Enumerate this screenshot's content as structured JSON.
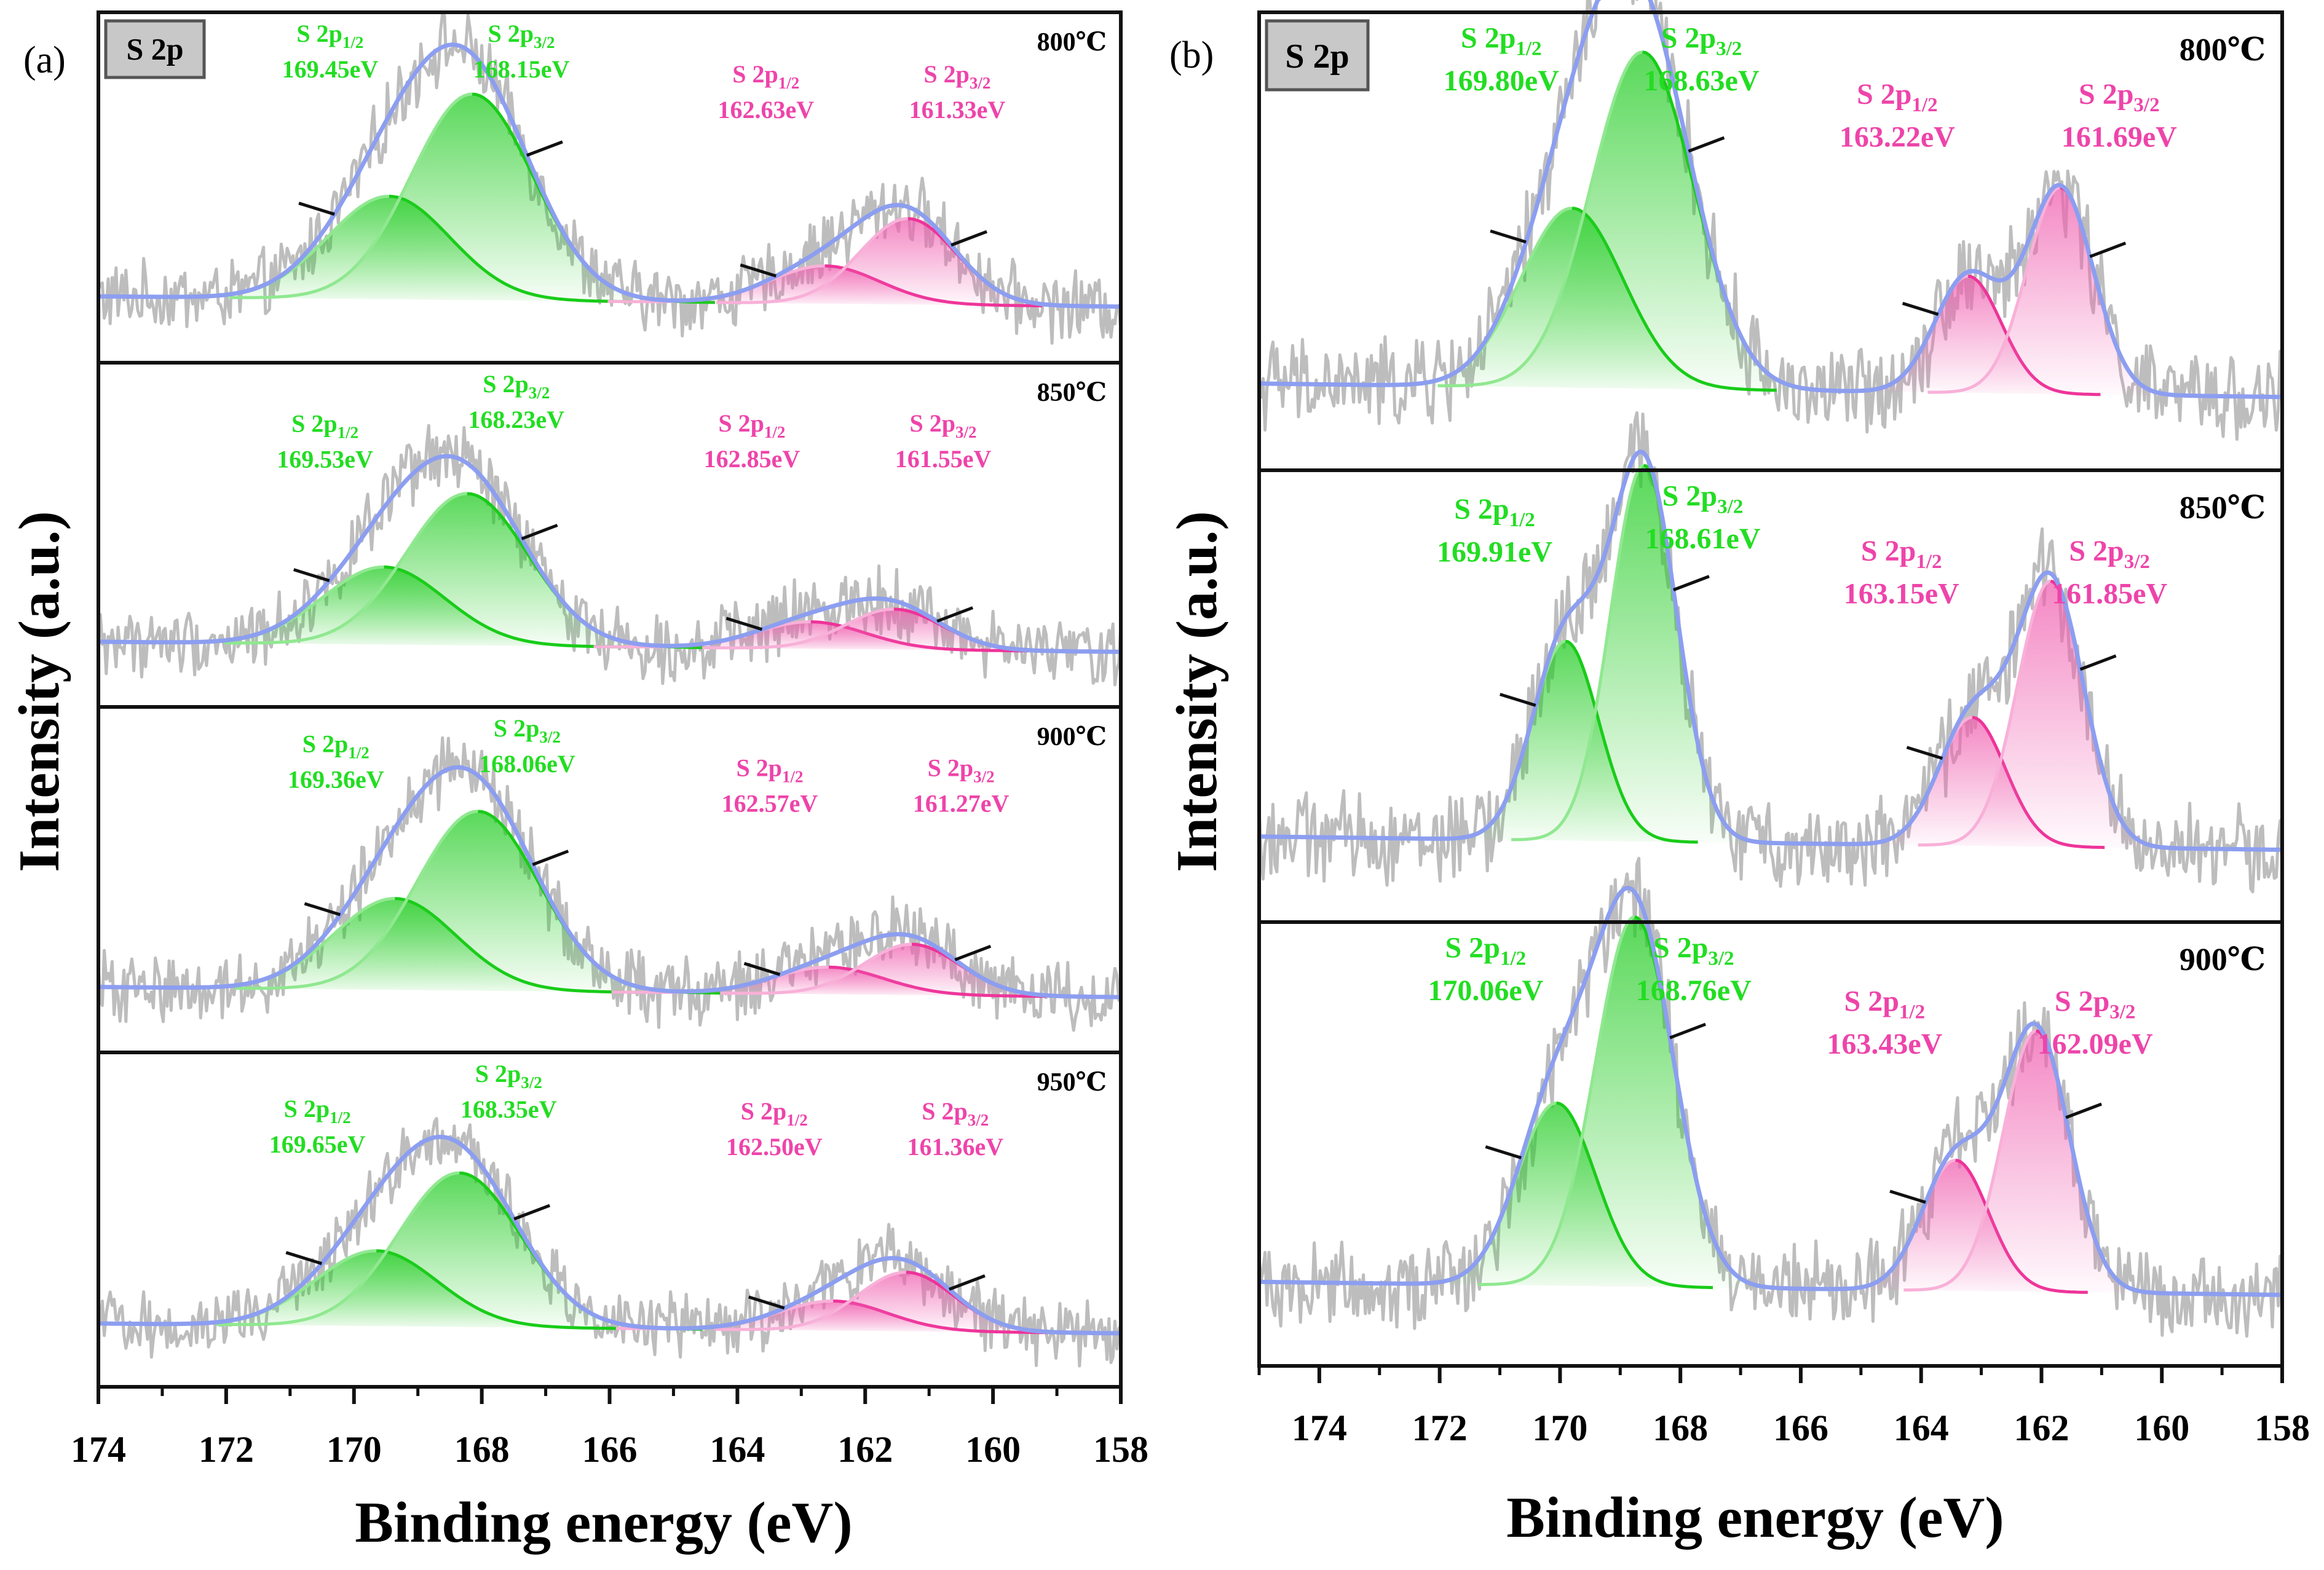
{
  "figure": {
    "y_axis_label": "Intensity (a.u.)",
    "x_axis_label": "Binding energy (eV)",
    "badge": "S 2p"
  },
  "colors": {
    "green_label": "#22dd22",
    "green_line": "#18cc18",
    "green_fill": "#22cc22",
    "green_light_line": "#90e890",
    "pink_label": "#ee44aa",
    "pink_line": "#ee3399",
    "pink_fill": "#f060b0",
    "pink_light_line": "#f8b0d8",
    "envelope": "#8c9ef0",
    "raw": "#bdbdbd",
    "badge_bg": "#c8c8c8"
  },
  "chart_data": [
    {
      "panel": "(a)",
      "type": "line",
      "x_range": [
        174,
        158
      ],
      "x_ticks": [
        "174",
        "172",
        "170",
        "168",
        "166",
        "164",
        "162",
        "160",
        "158"
      ],
      "tick_values": [
        174,
        172,
        170,
        168,
        166,
        164,
        162,
        160,
        158
      ],
      "subplots": [
        {
          "temperature": "800℃",
          "show_badge": true,
          "peaks": [
            {
              "name": "S 2p1/2",
              "center": 169.45,
              "label": "169.45eV",
              "group": "green",
              "kind": "half",
              "height": 0.3,
              "sigma": 0.95
            },
            {
              "name": "S 2p3/2",
              "center": 168.15,
              "label": "168.15eV",
              "group": "green",
              "kind": "three",
              "height": 0.6,
              "sigma": 0.95
            },
            {
              "name": "S 2p1/2",
              "center": 162.63,
              "label": "162.63eV",
              "group": "pink",
              "kind": "half",
              "height": 0.11,
              "sigma": 0.85
            },
            {
              "name": "S 2p3/2",
              "center": 161.33,
              "label": "161.33eV",
              "group": "pink",
              "kind": "three",
              "height": 0.25,
              "sigma": 0.75
            }
          ]
        },
        {
          "temperature": "850℃",
          "show_badge": false,
          "peaks": [
            {
              "name": "S 2p1/2",
              "center": 169.53,
              "label": "169.53eV",
              "group": "green",
              "kind": "half",
              "height": 0.23,
              "sigma": 0.95
            },
            {
              "name": "S 2p3/2",
              "center": 168.23,
              "label": "168.23eV",
              "group": "green",
              "kind": "three",
              "height": 0.45,
              "sigma": 0.95
            },
            {
              "name": "S 2p1/2",
              "center": 162.85,
              "label": "162.85eV",
              "group": "pink",
              "kind": "half",
              "height": 0.08,
              "sigma": 0.85
            },
            {
              "name": "S 2p3/2",
              "center": 161.55,
              "label": "161.55eV",
              "group": "pink",
              "kind": "three",
              "height": 0.12,
              "sigma": 0.75
            }
          ]
        },
        {
          "temperature": "900℃",
          "show_badge": false,
          "peaks": [
            {
              "name": "S 2p1/2",
              "center": 169.36,
              "label": "169.36eV",
              "group": "green",
              "kind": "half",
              "height": 0.27,
              "sigma": 0.95
            },
            {
              "name": "S 2p3/2",
              "center": 168.06,
              "label": "168.06eV",
              "group": "green",
              "kind": "three",
              "height": 0.53,
              "sigma": 0.95
            },
            {
              "name": "S 2p1/2",
              "center": 162.57,
              "label": "162.57eV",
              "group": "pink",
              "kind": "half",
              "height": 0.08,
              "sigma": 0.85
            },
            {
              "name": "S 2p3/2",
              "center": 161.27,
              "label": "161.27eV",
              "group": "pink",
              "kind": "three",
              "height": 0.15,
              "sigma": 0.75
            }
          ]
        },
        {
          "temperature": "950℃",
          "show_badge": false,
          "peaks": [
            {
              "name": "S 2p1/2",
              "center": 169.65,
              "label": "169.65eV",
              "group": "green",
              "kind": "half",
              "height": 0.23,
              "sigma": 0.95
            },
            {
              "name": "S 2p3/2",
              "center": 168.35,
              "label": "168.35eV",
              "group": "green",
              "kind": "three",
              "height": 0.47,
              "sigma": 0.95
            },
            {
              "name": "S 2p1/2",
              "center": 162.5,
              "label": "162.50eV",
              "group": "pink",
              "kind": "half",
              "height": 0.09,
              "sigma": 0.85
            },
            {
              "name": "S 2p3/2",
              "center": 161.36,
              "label": "161.36eV",
              "group": "pink",
              "kind": "three",
              "height": 0.18,
              "sigma": 0.75
            }
          ]
        }
      ]
    },
    {
      "panel": "(b)",
      "type": "line",
      "x_range": [
        175,
        158
      ],
      "x_ticks": [
        "174",
        "172",
        "170",
        "168",
        "166",
        "164",
        "162",
        "160",
        "158"
      ],
      "tick_values": [
        174,
        172,
        170,
        168,
        166,
        164,
        162,
        160,
        158
      ],
      "subplots": [
        {
          "temperature": "800℃",
          "show_badge": true,
          "peaks": [
            {
              "name": "S 2p1/2",
              "center": 169.8,
              "label": "169.80eV",
              "group": "green",
              "kind": "half",
              "height": 0.4,
              "sigma": 0.85
            },
            {
              "name": "S 2p3/2",
              "center": 168.63,
              "label": "168.63eV",
              "group": "green",
              "kind": "three",
              "height": 0.75,
              "sigma": 0.85
            },
            {
              "name": "S 2p1/2",
              "center": 163.22,
              "label": "163.22eV",
              "group": "pink",
              "kind": "half",
              "height": 0.26,
              "sigma": 0.55
            },
            {
              "name": "S 2p3/2",
              "center": 161.69,
              "label": "161.69eV",
              "group": "pink",
              "kind": "three",
              "height": 0.46,
              "sigma": 0.55
            }
          ]
        },
        {
          "temperature": "850℃",
          "show_badge": false,
          "peaks": [
            {
              "name": "S 2p1/2",
              "center": 169.91,
              "label": "169.91eV",
              "group": "green",
              "kind": "half",
              "height": 0.45,
              "sigma": 0.55
            },
            {
              "name": "S 2p3/2",
              "center": 168.61,
              "label": "168.61eV",
              "group": "green",
              "kind": "three",
              "height": 0.85,
              "sigma": 0.55
            },
            {
              "name": "S 2p1/2",
              "center": 163.15,
              "label": "163.15eV",
              "group": "pink",
              "kind": "half",
              "height": 0.29,
              "sigma": 0.55
            },
            {
              "name": "S 2p3/2",
              "center": 161.85,
              "label": "161.85eV",
              "group": "pink",
              "kind": "three",
              "height": 0.6,
              "sigma": 0.55
            }
          ]
        },
        {
          "temperature": "900℃",
          "show_badge": false,
          "peaks": [
            {
              "name": "S 2p1/2",
              "center": 170.06,
              "label": "170.06eV",
              "group": "green",
              "kind": "half",
              "height": 0.42,
              "sigma": 0.65
            },
            {
              "name": "S 2p3/2",
              "center": 168.76,
              "label": "168.76eV",
              "group": "green",
              "kind": "three",
              "height": 0.85,
              "sigma": 0.65
            },
            {
              "name": "S 2p1/2",
              "center": 163.43,
              "label": "163.43eV",
              "group": "pink",
              "kind": "half",
              "height": 0.3,
              "sigma": 0.55
            },
            {
              "name": "S 2p3/2",
              "center": 162.09,
              "label": "162.09eV",
              "group": "pink",
              "kind": "three",
              "height": 0.6,
              "sigma": 0.55
            }
          ]
        }
      ]
    }
  ]
}
